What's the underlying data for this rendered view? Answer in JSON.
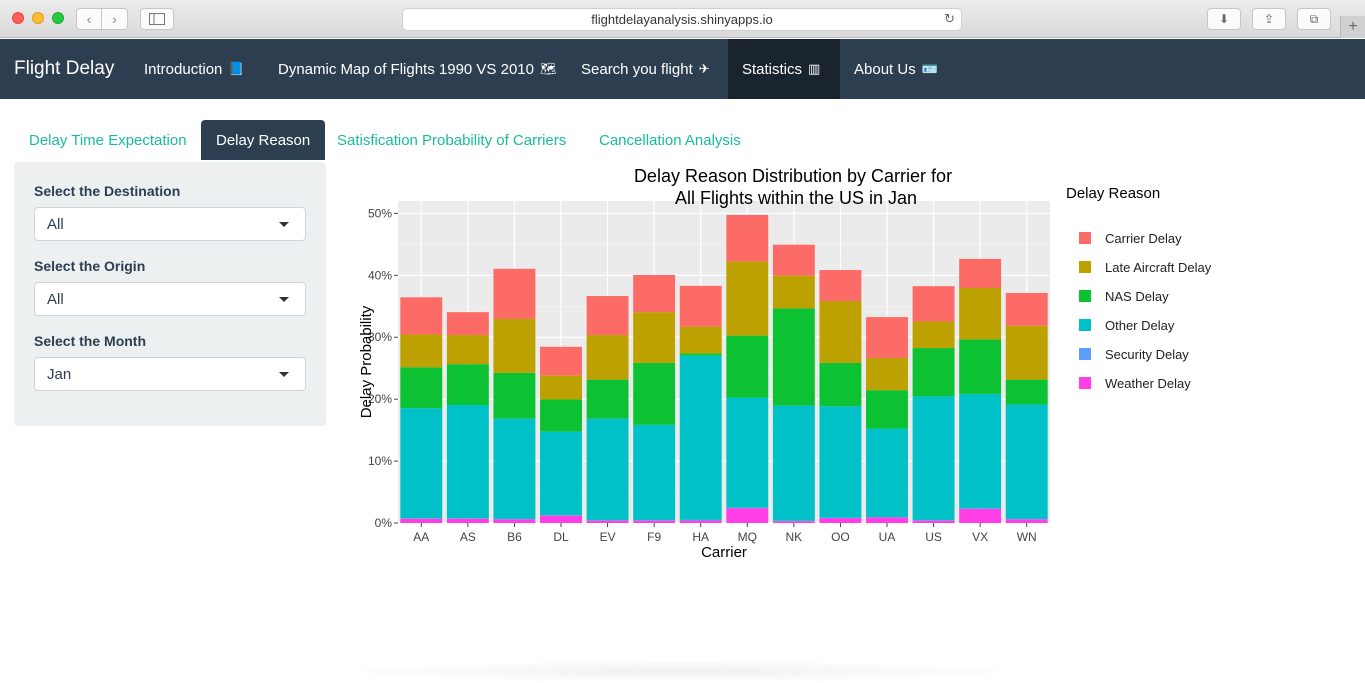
{
  "browser": {
    "url": "flightdelayanalysis.shinyapps.io",
    "back_glyph": "‹",
    "forward_glyph": "›",
    "reload_glyph": "↻",
    "download_glyph": "⬇",
    "share_glyph": "⇪",
    "tabs_glyph": "⧉",
    "newtab_glyph": "+"
  },
  "navbar": {
    "brand": "Flight Delay",
    "items": [
      {
        "label": "Introduction",
        "icon": "book-icon",
        "glyph": "📘"
      },
      {
        "label": "Dynamic Map of Flights 1990 VS 2010",
        "icon": "map-icon",
        "glyph": "🗺"
      },
      {
        "label": "Search you flight",
        "icon": "plane-icon",
        "glyph": "✈"
      },
      {
        "label": "Statistics",
        "icon": "bar-chart-icon",
        "glyph": "▥"
      },
      {
        "label": "About Us",
        "icon": "id-card-icon",
        "glyph": "🪪"
      }
    ],
    "active": "Statistics"
  },
  "tabs": {
    "items": [
      "Delay Time Expectation",
      "Delay Reason",
      "Satisfication Probability of Carriers",
      "Cancellation Analysis"
    ],
    "active": "Delay Reason"
  },
  "sidebar": {
    "destination_label": "Select the Destination",
    "destination_value": "All",
    "origin_label": "Select the Origin",
    "origin_value": "All",
    "month_label": "Select the Month",
    "month_value": "Jan"
  },
  "colors": {
    "accent": "#18bc9c",
    "navbar": "#2c3e50",
    "panel_bg": "#ebebeb"
  },
  "chart_data": {
    "type": "bar",
    "stacked": true,
    "title_line1": "Delay Reason Distribution by Carrier for",
    "title_line2": "All Flights within the US in Jan",
    "xlabel": "Carrier",
    "ylabel": "Delay Probability",
    "ylim": [
      0,
      0.52
    ],
    "yticks": [
      0,
      0.1,
      0.2,
      0.3,
      0.4,
      0.5
    ],
    "ytick_labels": [
      "0%",
      "10%",
      "20%",
      "30%",
      "40%",
      "50%"
    ],
    "legend_title": "Delay Reason",
    "categories": [
      "AA",
      "AS",
      "B6",
      "DL",
      "EV",
      "F9",
      "HA",
      "MQ",
      "NK",
      "OO",
      "UA",
      "US",
      "VX",
      "WN"
    ],
    "series": [
      {
        "name": "Weather Delay",
        "color": "#ff3ee6",
        "values": [
          0.007,
          0.007,
          0.006,
          0.012,
          0.004,
          0.004,
          0.004,
          0.024,
          0.003,
          0.008,
          0.009,
          0.004,
          0.023,
          0.006
        ]
      },
      {
        "name": "Security Delay",
        "color": "#5c9dff",
        "values": [
          0.0005,
          0.0005,
          0.0005,
          0.0005,
          0.0005,
          0.0005,
          0.001,
          0.0005,
          0.0005,
          0.0005,
          0.0005,
          0.0005,
          0.0005,
          0.0005
        ]
      },
      {
        "name": "Other Delay",
        "color": "#00c1c7",
        "values": [
          0.178,
          0.183,
          0.162,
          0.135,
          0.164,
          0.154,
          0.265,
          0.178,
          0.186,
          0.18,
          0.143,
          0.2,
          0.185,
          0.185
        ]
      },
      {
        "name": "NAS Delay",
        "color": "#0cc233",
        "values": [
          0.066,
          0.066,
          0.074,
          0.052,
          0.063,
          0.1,
          0.004,
          0.1,
          0.157,
          0.07,
          0.062,
          0.078,
          0.088,
          0.04
        ]
      },
      {
        "name": "Late Aircraft Delay",
        "color": "#bca100",
        "values": [
          0.053,
          0.047,
          0.087,
          0.039,
          0.072,
          0.082,
          0.043,
          0.12,
          0.053,
          0.1,
          0.052,
          0.043,
          0.083,
          0.087
        ]
      },
      {
        "name": "Carrier Delay",
        "color": "#fc6b66",
        "values": [
          0.06,
          0.037,
          0.081,
          0.046,
          0.063,
          0.06,
          0.066,
          0.075,
          0.05,
          0.05,
          0.066,
          0.057,
          0.047,
          0.053
        ]
      }
    ],
    "legend_order": [
      "Carrier Delay",
      "Late Aircraft Delay",
      "NAS Delay",
      "Other Delay",
      "Security Delay",
      "Weather Delay"
    ],
    "grid": true,
    "legend_position": "right"
  }
}
